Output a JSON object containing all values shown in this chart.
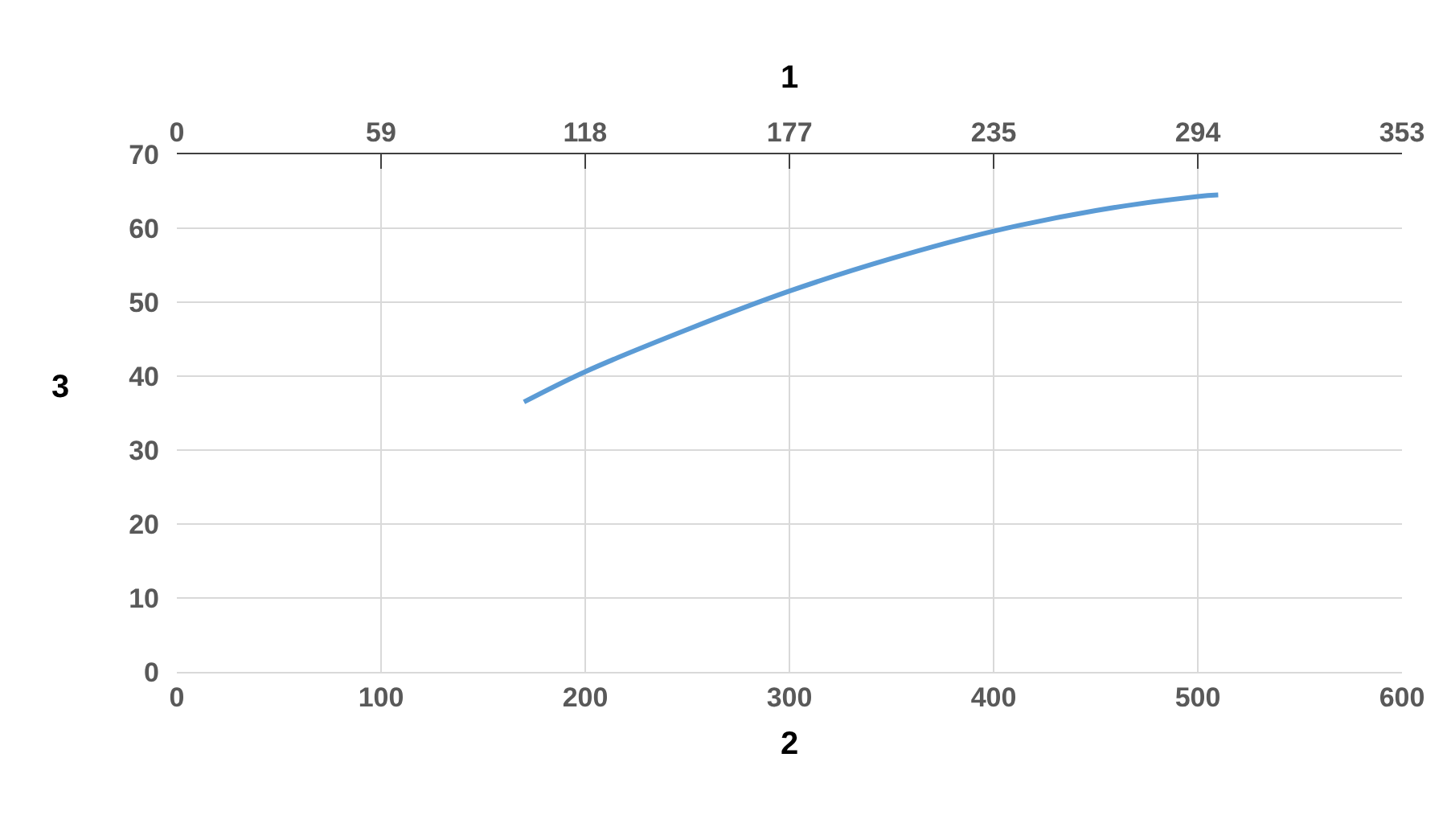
{
  "chart_data": {
    "type": "line",
    "x2label": "1",
    "xlabel": "2",
    "ylabel": "3",
    "x": [
      170,
      200,
      250,
      300,
      350,
      400,
      450,
      500,
      510
    ],
    "series": [
      {
        "color": "#5b9bd5",
        "values": [
          36.5,
          40.6,
          46.3,
          51.5,
          55.9,
          59.6,
          62.4,
          64.3,
          64.5
        ]
      }
    ],
    "xlim": [
      0,
      600
    ],
    "xticks": [
      0,
      100,
      200,
      300,
      400,
      500,
      600
    ],
    "x2lim": [
      0,
      352.9
    ],
    "x2ticks": [
      0,
      {
        "value": 58.8,
        "label": "59"
      },
      {
        "value": 117.6,
        "label": "118"
      },
      {
        "value": 176.5,
        "label": "177"
      },
      {
        "value": 235.3,
        "label": "235"
      },
      {
        "value": 294.1,
        "label": "294"
      },
      {
        "value": 352.9,
        "label": "353"
      }
    ],
    "ylim": [
      0,
      70
    ],
    "yticks": [
      0,
      10,
      20,
      30,
      40,
      50,
      60,
      70
    ],
    "grid": true,
    "marker": "none",
    "line_style": "solid"
  }
}
